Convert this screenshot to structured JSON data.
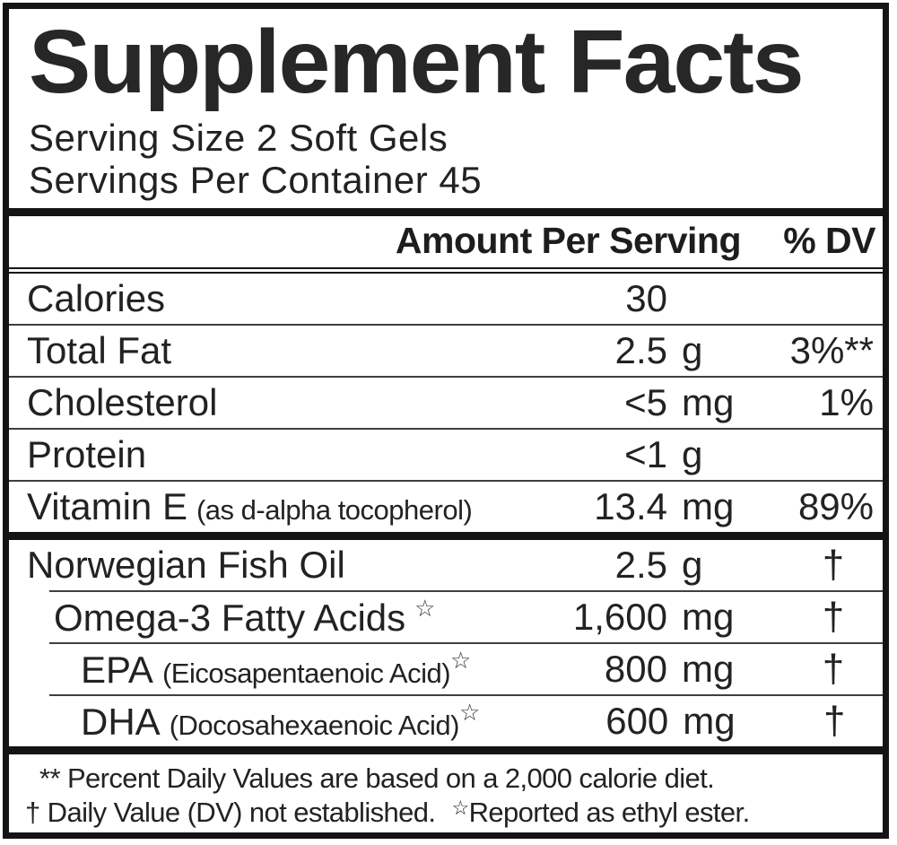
{
  "colors": {
    "ink": "#1d1d1d",
    "background": "#ffffff"
  },
  "label": {
    "title": "Supplement Facts",
    "serving_size": "Serving Size 2 Soft Gels",
    "servings_per_container": "Servings Per Container 45",
    "header": {
      "amount": "Amount Per Serving",
      "dv": "% DV"
    },
    "rows": [
      {
        "name": "Calories",
        "note": "",
        "star": "",
        "amount": "30",
        "unit": "",
        "dv": ""
      },
      {
        "name": "Total Fat",
        "note": "",
        "star": "",
        "amount": "2.5",
        "unit": "g",
        "dv": "3%**"
      },
      {
        "name": "Cholesterol",
        "note": "",
        "star": "",
        "amount": "<5",
        "unit": "mg",
        "dv": "1%"
      },
      {
        "name": "Protein",
        "note": "",
        "star": "",
        "amount": "<1",
        "unit": "g",
        "dv": ""
      },
      {
        "name": "Vitamin E",
        "note": "(as d-alpha tocopherol)",
        "star": "",
        "amount": "13.4",
        "unit": "mg",
        "dv": "89%"
      },
      {
        "name": "Norwegian Fish Oil",
        "note": "",
        "star": "",
        "amount": "2.5",
        "unit": "g",
        "dv": "†"
      },
      {
        "name": "Omega-3 Fatty Acids",
        "note": "",
        "star": "☆",
        "amount": "1,600",
        "unit": "mg",
        "dv": "†"
      },
      {
        "name": "EPA",
        "note": "(Eicosapentaenoic Acid)",
        "star": "☆",
        "amount": "800",
        "unit": "mg",
        "dv": "†"
      },
      {
        "name": "DHA",
        "note": "(Docosahexaenoic Acid)",
        "star": "☆",
        "amount": "600",
        "unit": "mg",
        "dv": "†"
      }
    ],
    "footnotes": {
      "line1": "** Percent Daily Values are based on a 2,000 calorie diet.",
      "line2_dagger": "† Daily Value (DV) not established.",
      "line2_star": "☆",
      "line2_rest": "Reported as ethyl ester."
    }
  }
}
